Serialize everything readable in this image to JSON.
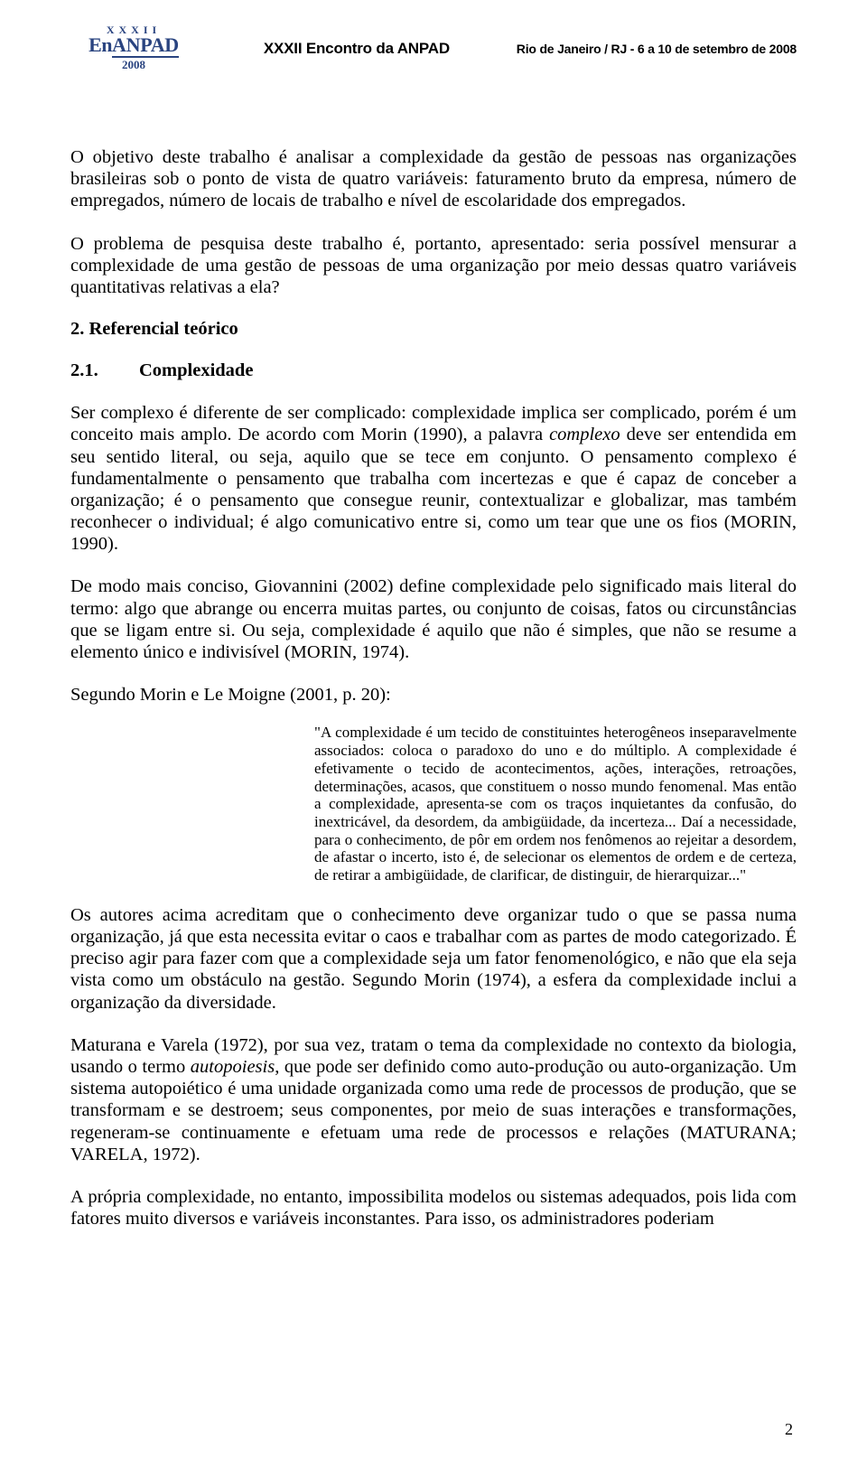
{
  "header": {
    "logo_roman": "XXXII",
    "logo_en": "En",
    "logo_anpad": "ANPAD",
    "logo_year": "2008",
    "center": "XXXII Encontro da ANPAD",
    "right": "Rio de Janeiro / RJ - 6 a 10 de setembro de 2008"
  },
  "body": {
    "p1": "O objetivo deste trabalho é analisar a complexidade da gestão de pessoas nas organizações brasileiras sob o ponto de vista de quatro variáveis: faturamento bruto da empresa, número de empregados, número de locais de trabalho e nível de escolaridade dos empregados.",
    "p2": "O problema de pesquisa deste trabalho é, portanto, apresentado: seria possível mensurar a complexidade de uma gestão de pessoas de uma organização por meio dessas quatro variáveis quantitativas relativas a ela?",
    "h2": "2. Referencial teórico",
    "h21_num": "2.1.",
    "h21_label": "Complexidade",
    "p3a": "Ser complexo é diferente de ser complicado: complexidade implica ser complicado, porém é um conceito mais amplo. De acordo com Morin (1990), a palavra ",
    "p3_em": "complexo",
    "p3b": " deve ser entendida em seu sentido literal, ou seja, aquilo que se tece em conjunto. O pensamento complexo é fundamentalmente o pensamento que trabalha com incertezas e que é capaz de conceber a organização; é o pensamento que consegue reunir, contextualizar e globalizar, mas também reconhecer o individual; é algo comunicativo entre si, como um tear que une os fios (MORIN, 1990).",
    "p4": "De modo mais conciso, Giovannini (2002) define complexidade pelo significado mais literal do termo: algo que abrange ou encerra muitas partes, ou conjunto de coisas, fatos ou circunstâncias que se ligam entre si. Ou seja, complexidade é aquilo que não é simples, que não se resume a elemento único e indivisível (MORIN, 1974).",
    "p5": "Segundo Morin e Le Moigne (2001, p. 20):",
    "quote": "\"A complexidade é um tecido de constituintes heterogêneos inseparavelmente associados: coloca o paradoxo do uno e do múltiplo. A complexidade é efetivamente o tecido de acontecimentos, ações, interações, retroações, determinações, acasos, que constituem o nosso mundo fenomenal. Mas então a complexidade, apresenta-se com os traços inquietantes da confusão, do inextricável, da desordem, da ambigüidade, da incerteza... Daí a necessidade, para o conhecimento, de pôr em ordem nos fenômenos ao rejeitar a desordem, de afastar o incerto, isto é, de selecionar os elementos de ordem e de certeza, de retirar a ambigüidade, de clarificar, de distinguir, de hierarquizar...\"",
    "p6": "Os autores acima acreditam que o conhecimento deve organizar tudo o que se passa numa organização, já que esta necessita evitar o caos e trabalhar com as partes de modo categorizado. É preciso agir para fazer com que a complexidade seja um fator fenomenológico, e não que ela seja vista como um obstáculo na gestão. Segundo Morin (1974), a esfera da complexidade inclui a organização da diversidade.",
    "p7a": "Maturana e Varela (1972), por sua vez, tratam o tema da complexidade no contexto da biologia, usando o termo ",
    "p7_em": "autopoiesis",
    "p7b": ", que pode ser definido como auto-produção ou auto-organização. Um sistema autopoiético é uma unidade organizada como uma rede de processos de produção, que se transformam e se destroem; seus componentes, por meio de suas interações e transformações, regeneram-se continuamente e efetuam uma rede de processos e relações (MATURANA; VARELA, 1972).",
    "p8": "A própria complexidade, no entanto, impossibilita modelos ou sistemas adequados, pois lida com fatores muito diversos e variáveis inconstantes. Para isso, os administradores poderiam"
  },
  "page_number": "2"
}
